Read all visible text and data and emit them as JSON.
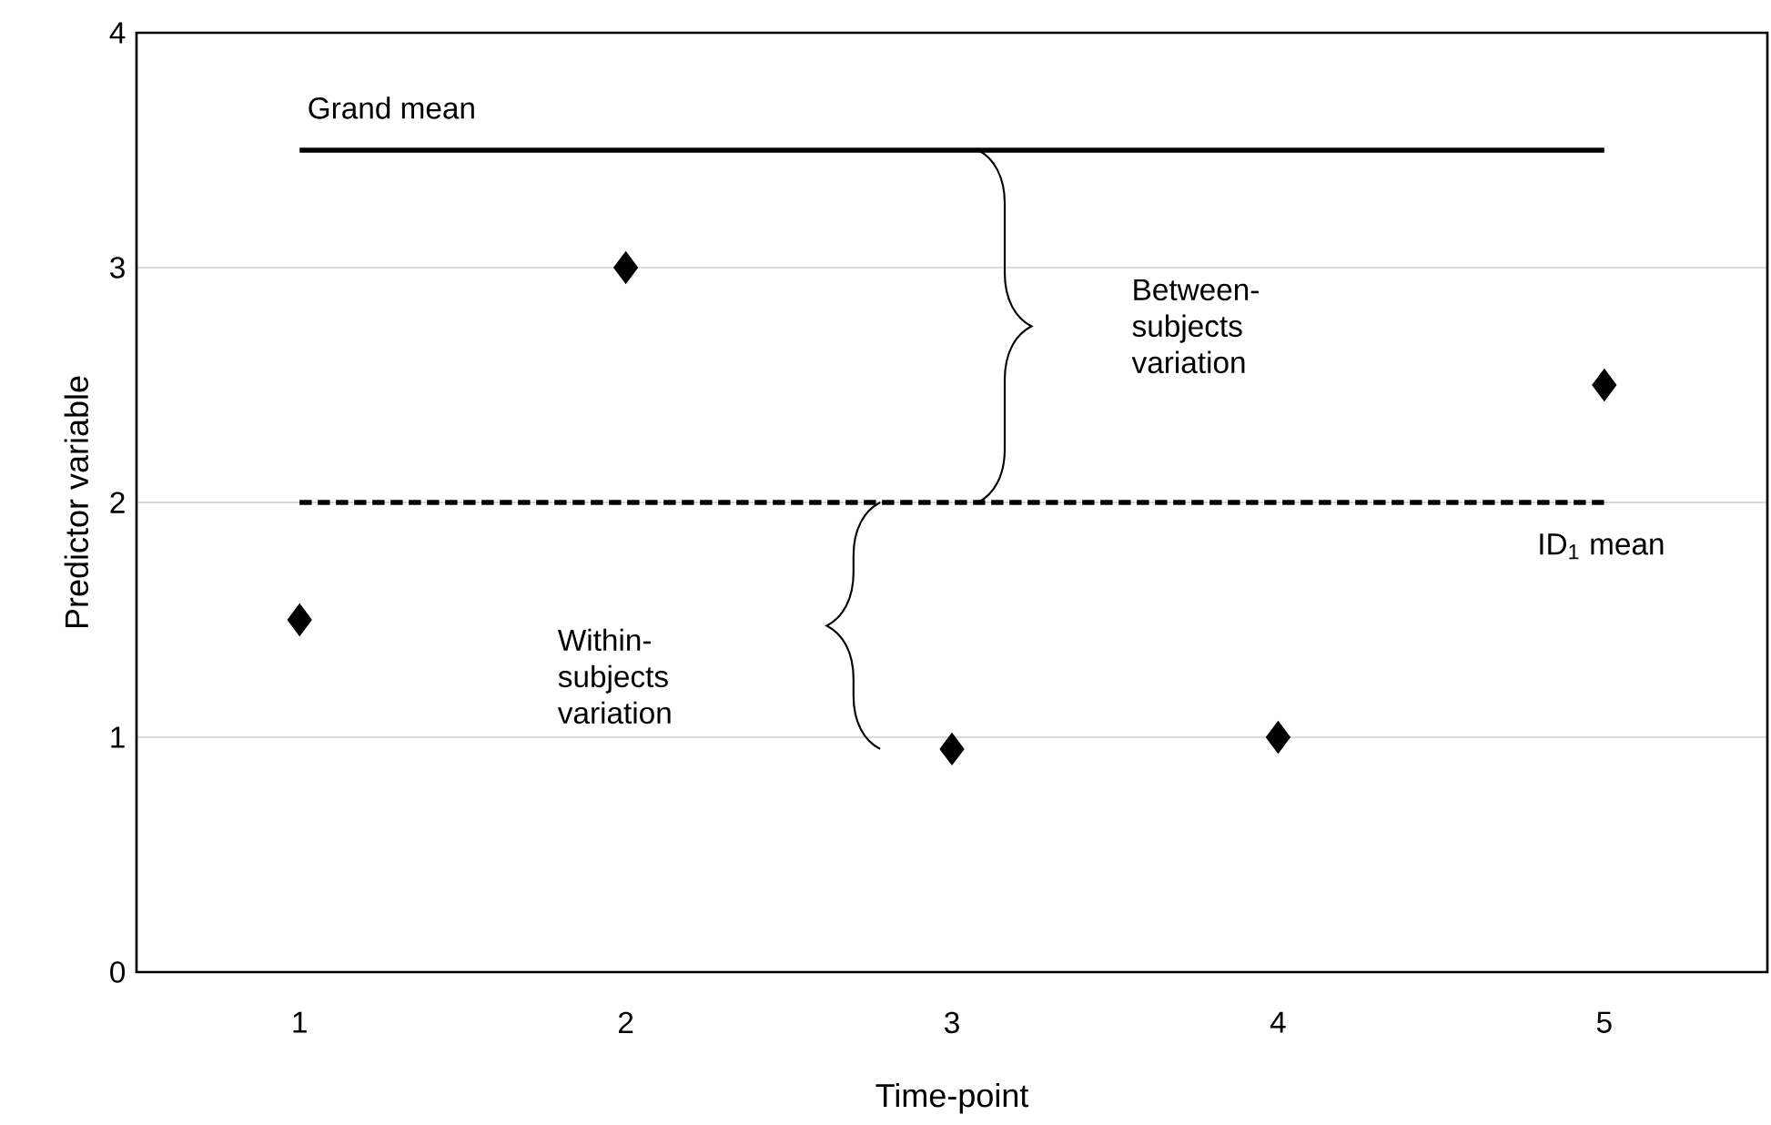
{
  "chart_data": {
    "type": "scatter",
    "xlabel": "Time-point",
    "ylabel": "Predictor variable",
    "x": [
      1,
      2,
      3,
      4,
      5
    ],
    "xlim": [
      0.5,
      5.5
    ],
    "xticks": [
      1,
      2,
      3,
      4,
      5
    ],
    "ylim": [
      0,
      4
    ],
    "yticks": [
      0,
      1,
      2,
      3,
      4
    ],
    "grid": "y",
    "series": [
      {
        "name": "Grand mean",
        "type": "line",
        "color": "#000000",
        "line_style": "solid",
        "marker": "none",
        "values": [
          3.5,
          3.5,
          3.5,
          3.5,
          3.5
        ]
      },
      {
        "name": "ID$_{1}$ mean",
        "type": "line",
        "color": "#000000",
        "line_style": "dashed",
        "marker": "none",
        "values": [
          2,
          2,
          2,
          2,
          2
        ]
      },
      {
        "color": "#000000",
        "marker": "diamond",
        "values": [
          1.5,
          3,
          0.95,
          1,
          2.5
        ]
      }
    ],
    "annotations": [
      "Between-subjects variation",
      "Within-subjects variation"
    ]
  }
}
